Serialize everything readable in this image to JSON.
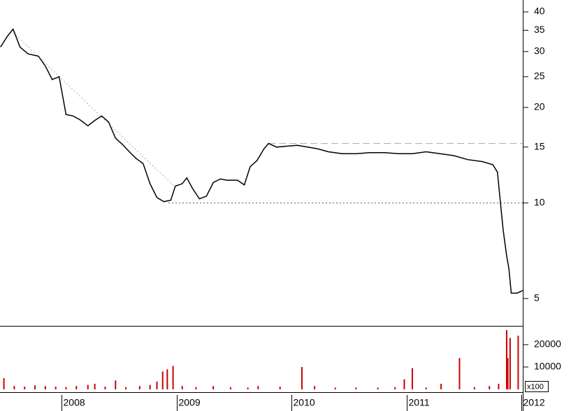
{
  "chart_data": [
    {
      "type": "line",
      "log_scale": true,
      "xlim": [
        2007.466,
        2012.01
      ],
      "ylim": [
        4.1,
        43.6
      ],
      "yticks": [
        5,
        10,
        15,
        20,
        25,
        30,
        35,
        40
      ],
      "x": [
        2007.47,
        2007.53,
        2007.58,
        2007.64,
        2007.71,
        2007.8,
        2007.86,
        2007.92,
        2007.98,
        2008.04,
        2008.1,
        2008.16,
        2008.23,
        2008.29,
        2008.35,
        2008.41,
        2008.47,
        2008.53,
        2008.59,
        2008.65,
        2008.71,
        2008.77,
        2008.83,
        2008.89,
        2008.95,
        2008.99,
        2009.05,
        2009.09,
        2009.14,
        2009.2,
        2009.26,
        2009.32,
        2009.38,
        2009.44,
        2009.53,
        2009.59,
        2009.64,
        2009.7,
        2009.76,
        2009.8,
        2009.87,
        2009.96,
        2010.05,
        2010.14,
        2010.23,
        2010.32,
        2010.44,
        2010.56,
        2010.68,
        2010.81,
        2010.93,
        2011.05,
        2011.17,
        2011.29,
        2011.41,
        2011.53,
        2011.66,
        2011.75,
        2011.79,
        2011.81,
        2011.84,
        2011.87,
        2011.89,
        2011.91,
        2011.96,
        2012.01
      ],
      "series": [
        {
          "color": "#000000",
          "values": [
            31,
            33.5,
            35.3,
            31,
            29.5,
            29,
            27,
            24.5,
            25,
            19,
            18.8,
            18.3,
            17.5,
            18.2,
            18.8,
            18,
            16,
            15.3,
            14.5,
            13.8,
            13.3,
            11.5,
            10.4,
            10.1,
            10.2,
            11.3,
            11.5,
            12,
            11.1,
            10.3,
            10.5,
            11.6,
            11.9,
            11.8,
            11.8,
            11.4,
            13,
            13.6,
            14.8,
            15.4,
            15,
            15.1,
            15.2,
            15,
            14.8,
            14.5,
            14.3,
            14.3,
            14.4,
            14.4,
            14.3,
            14.3,
            14.5,
            14.3,
            14.1,
            13.7,
            13.5,
            13.2,
            12.5,
            10.5,
            8.2,
            6.8,
            6.2,
            5.2,
            5.2,
            5.3
          ]
        }
      ],
      "reference_lines": [
        {
          "value": 10,
          "from": 2008.93,
          "style": "dotted"
        },
        {
          "value": 15.4,
          "from": 2009.8,
          "style": "dashed"
        }
      ],
      "trendline": {
        "x": [
          2007.56,
          2008.98
        ],
        "y": [
          35,
          11.3
        ]
      }
    },
    {
      "type": "bar",
      "color": "#cc0000",
      "xlim": [
        2007.466,
        2012.01
      ],
      "ylim": [
        0,
        28400
      ],
      "yticks": [
        10000,
        20000
      ],
      "unit_label": "x100",
      "xticks": [
        2008,
        2009,
        2010,
        2011,
        2012
      ],
      "x": [
        2007.5,
        2007.59,
        2007.68,
        2007.77,
        2007.86,
        2007.95,
        2008.04,
        2008.13,
        2008.23,
        2008.29,
        2008.38,
        2008.47,
        2008.56,
        2008.68,
        2008.77,
        2008.83,
        2008.88,
        2008.92,
        2008.97,
        2009.05,
        2009.17,
        2009.32,
        2009.47,
        2009.62,
        2009.71,
        2009.9,
        2010.09,
        2010.2,
        2010.38,
        2010.56,
        2010.75,
        2010.9,
        2010.98,
        2011.05,
        2011.17,
        2011.3,
        2011.46,
        2011.59,
        2011.72,
        2011.8,
        2011.87,
        2011.88,
        2011.9,
        2011.97
      ],
      "values": [
        5000,
        1500,
        1200,
        1800,
        1500,
        1200,
        1000,
        1500,
        2000,
        2500,
        1200,
        4000,
        1000,
        1500,
        2000,
        3500,
        8000,
        9000,
        10500,
        1500,
        1000,
        1500,
        1000,
        800,
        1500,
        1200,
        10000,
        1500,
        800,
        800,
        800,
        1000,
        4500,
        9500,
        800,
        2500,
        14000,
        1000,
        1500,
        2500,
        26500,
        14000,
        23000,
        24000
      ]
    }
  ]
}
